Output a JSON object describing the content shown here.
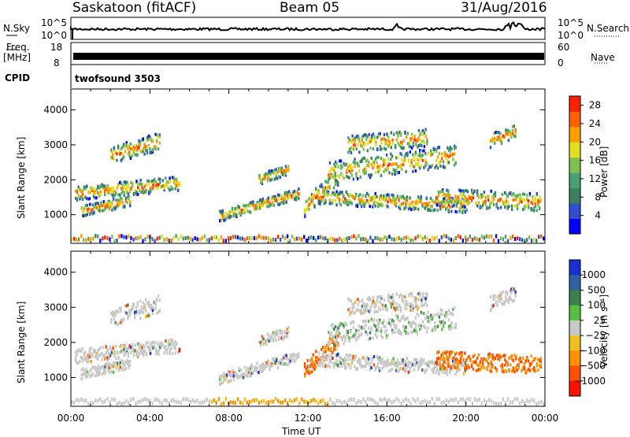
{
  "header": {
    "station": "Saskatoon (fitACF)",
    "beam": "Beam 05",
    "date": "31/Aug/2016",
    "cpid_label": "CPID",
    "cpid_value": "twofsound 3503"
  },
  "top_panels": {
    "nsky_label": "N.Sky",
    "nsky_ticks": [
      "10^5",
      "10^0"
    ],
    "nsearch_label": "N.Search",
    "nsearch_ticks": [
      "10^5",
      "10^0"
    ],
    "freq_label": "Freq.",
    "freq_unit": "[MHz]",
    "freq_ticks": [
      "18",
      "8"
    ],
    "nave_label": "Nave",
    "nave_ticks": [
      "60",
      "0"
    ]
  },
  "colors": {
    "power_scale": [
      "#0000ff",
      "#2f4fcf",
      "#3a7f5f",
      "#4aa070",
      "#80c050",
      "#e0e020",
      "#ffa000",
      "#ff6000",
      "#ff2000"
    ],
    "velocity_scale": [
      "#1a2fcf",
      "#2f60a0",
      "#3a8050",
      "#58c040",
      "#c8c8c8",
      "#f0c020",
      "#ff9000",
      "#ff5000",
      "#ff1000"
    ]
  },
  "chart_data": [
    {
      "type": "heatmap",
      "name": "power",
      "xlabel": "",
      "ylabel": "Slant Range [km]",
      "x_ticks": [
        "00:00",
        "04:00",
        "08:00",
        "12:00",
        "16:00",
        "20:00",
        "00:00"
      ],
      "y_ticks": [
        1000,
        2000,
        3000,
        4000
      ],
      "ylim": [
        180,
        4600
      ],
      "colorbar": {
        "label": "Power [dB]",
        "ticks": [
          4,
          8,
          12,
          16,
          20,
          24,
          28
        ],
        "range": [
          0,
          30
        ]
      }
    },
    {
      "type": "heatmap",
      "name": "velocity",
      "xlabel": "Time UT",
      "ylabel": "Slant Range [km]",
      "x_ticks": [
        "00:00",
        "04:00",
        "08:00",
        "12:00",
        "16:00",
        "20:00",
        "00:00"
      ],
      "y_ticks": [
        1000,
        2000,
        3000,
        4000
      ],
      "ylim": [
        180,
        4600
      ],
      "colorbar": {
        "label": "Velocity [m s⁻¹]",
        "ticks": [
          "1000",
          "500",
          "100",
          "25",
          "−25",
          "−100",
          "−500",
          "−1000"
        ]
      }
    }
  ]
}
